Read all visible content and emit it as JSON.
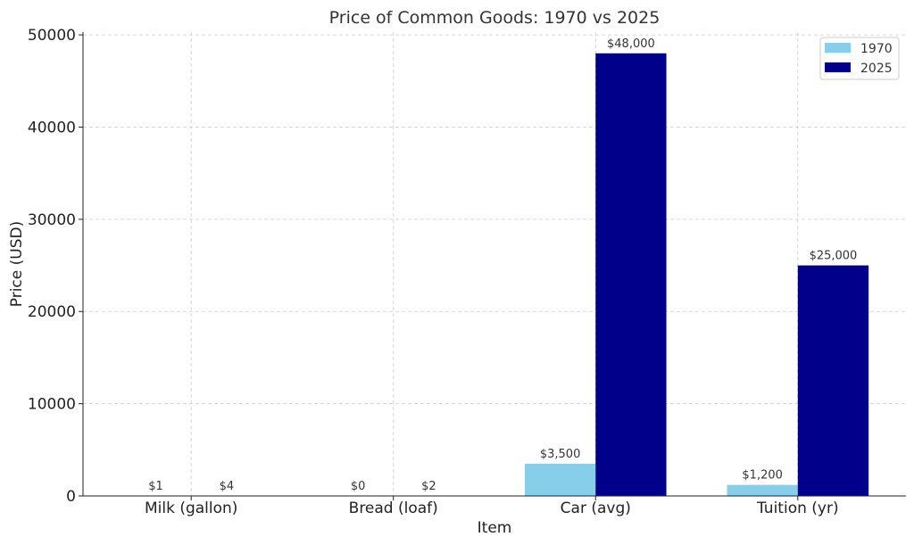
{
  "chart_data": {
    "type": "bar",
    "title": "Price of Common Goods: 1970 vs 2025",
    "xlabel": "Item",
    "ylabel": "Price (USD)",
    "categories": [
      "Milk (gallon)",
      "Bread (loaf)",
      "Car (avg)",
      "Tuition (yr)"
    ],
    "series": [
      {
        "name": "1970",
        "color": "#87CEEB",
        "values": [
          1,
          0,
          3500,
          1200
        ],
        "labels": [
          "$1",
          "$0",
          "$3,500",
          "$1,200"
        ]
      },
      {
        "name": "2025",
        "color": "#00008B",
        "values": [
          4,
          2,
          48000,
          25000
        ],
        "labels": [
          "$4",
          "$2",
          "$48,000",
          "$25,000"
        ]
      }
    ],
    "ylim": [
      0,
      50300
    ],
    "yticks": [
      0,
      10000,
      20000,
      30000,
      40000,
      50000
    ],
    "ytick_labels": [
      "0",
      "10000",
      "20000",
      "30000",
      "40000",
      "50000"
    ],
    "grid": true,
    "legend": "top-right"
  }
}
